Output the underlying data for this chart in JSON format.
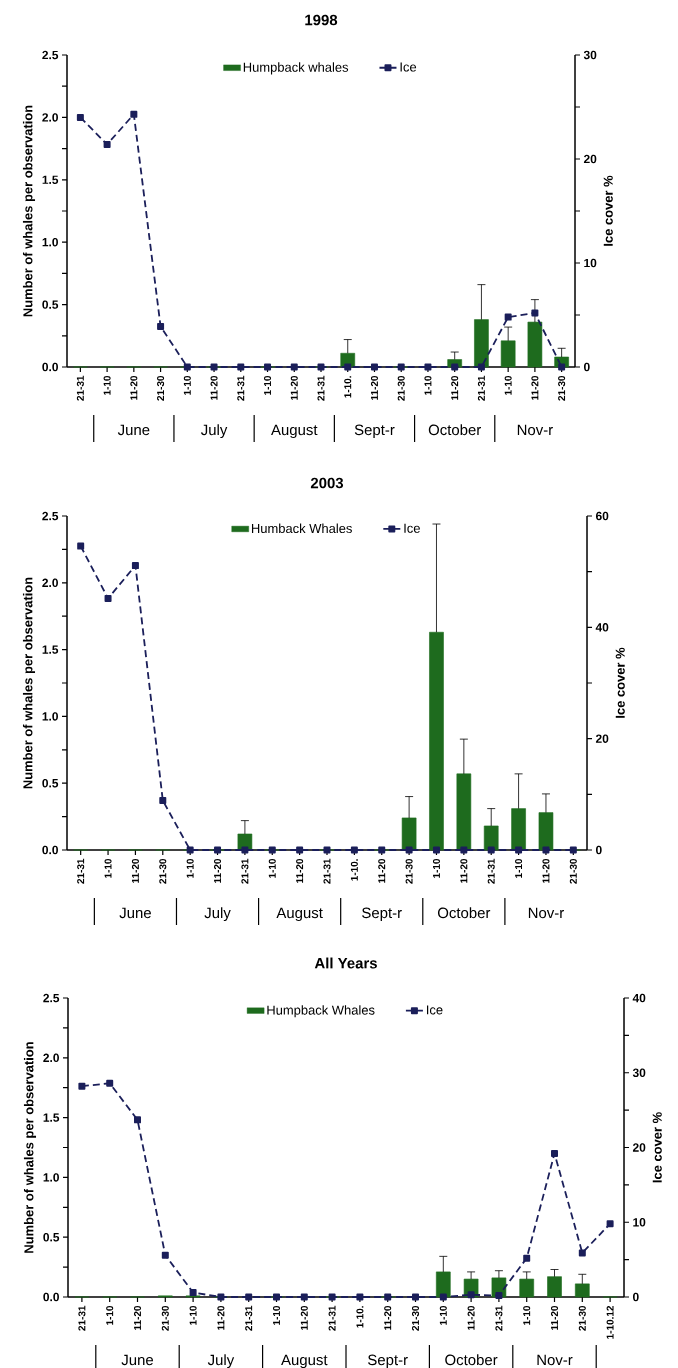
{
  "chart_data": [
    {
      "type": "bar",
      "title": "1998",
      "ylabel": "Number of whales per observation",
      "y2label": "Ice cover %",
      "categories": [
        "21-31",
        "1-10",
        "11-20",
        "21-30",
        "1-10",
        "11-20",
        "21-31",
        "1-10",
        "11-20",
        "21-31",
        "1-10.",
        "11-20",
        "21-30",
        "1-10",
        "11-20",
        "21-31",
        "1-10",
        "11-20",
        "21-30"
      ],
      "series": [
        {
          "name": "Humpback whales",
          "color": "#1e6b1e",
          "values": [
            0,
            0,
            0,
            0,
            0,
            0,
            0,
            0,
            0,
            0,
            0.11,
            0,
            0,
            0,
            0.06,
            0.38,
            0.21,
            0.36,
            0.08
          ],
          "errors": [
            null,
            null,
            null,
            null,
            null,
            null,
            null,
            null,
            null,
            null,
            [
              0.11,
              0.22
            ],
            null,
            null,
            null,
            [
              0.06,
              0.12
            ],
            [
              0.38,
              0.66
            ],
            [
              0.21,
              0.32
            ],
            [
              0.36,
              0.54
            ],
            [
              0.08,
              0.15
            ]
          ]
        },
        {
          "name": "Ice",
          "type": "line",
          "axis": "y2",
          "color": "#1b1f5a",
          "values": [
            24,
            21.4,
            24.3,
            3.9,
            0,
            0,
            0,
            0,
            0,
            0,
            0,
            0,
            0,
            0,
            0,
            0,
            4.8,
            5.2,
            0
          ]
        }
      ],
      "ylim": [
        0,
        2.5
      ],
      "yticks": [
        {
          "value": 0,
          "label": "0.0"
        },
        {
          "value": 0.25,
          "label": null
        },
        {
          "value": 0.5,
          "label": "0.5"
        },
        {
          "value": 0.75,
          "label": null
        },
        {
          "value": 1,
          "label": "1.0"
        },
        {
          "value": 1.25,
          "label": null
        },
        {
          "value": 1.5,
          "label": "1.5"
        },
        {
          "value": 1.75,
          "label": null
        },
        {
          "value": 2,
          "label": "2.0"
        },
        {
          "value": 2.25,
          "label": null
        },
        {
          "value": 2.5,
          "label": "2.5"
        }
      ],
      "y2lim": [
        0,
        30
      ],
      "y2ticks": [
        0,
        {
          "value": 5,
          "label": null
        },
        10,
        {
          "value": 15,
          "label": null
        },
        20,
        {
          "value": 25,
          "label": null
        },
        30
      ],
      "marker": "square",
      "line_style": "dashed",
      "legend": "top",
      "grid": false,
      "annotations": [
        "June",
        "July",
        "August",
        "Sept-r",
        "October",
        "Nov-r"
      ]
    },
    {
      "type": "bar",
      "title": "2003",
      "ylabel": "Number of whales per observation",
      "y2label": "Ice cover %",
      "categories": [
        "21-31",
        "1-10",
        "11-20",
        "21-30",
        "1-10",
        "11-20",
        "21-31",
        "1-10",
        "11-20",
        "21-31",
        "1-10.",
        "11-20",
        "21-30",
        "1-10",
        "11-20",
        "21-31",
        "1-10",
        "11-20",
        "21-30"
      ],
      "series": [
        {
          "name": "Humback Whales",
          "color": "#1e6b1e",
          "values": [
            0,
            0,
            0,
            0,
            0,
            0,
            0.12,
            0,
            0,
            0,
            0,
            0,
            0.24,
            1.63,
            0.57,
            0.18,
            0.31,
            0.28,
            0
          ],
          "errors": [
            null,
            null,
            null,
            null,
            null,
            null,
            [
              0.12,
              0.22
            ],
            null,
            null,
            null,
            null,
            null,
            [
              0.24,
              0.4
            ],
            [
              1.63,
              2.44
            ],
            [
              0.57,
              0.83
            ],
            [
              0.18,
              0.31
            ],
            [
              0.31,
              0.57
            ],
            [
              0.28,
              0.42
            ],
            null
          ]
        },
        {
          "name": "Ice",
          "type": "line",
          "axis": "y2",
          "color": "#1b1f5a",
          "values": [
            54.6,
            45.2,
            51.1,
            8.9,
            0,
            0,
            0,
            0,
            0,
            0,
            0,
            0,
            0,
            0,
            0,
            0,
            0,
            0,
            0
          ]
        }
      ],
      "ylim": [
        0,
        2.5
      ],
      "yticks": [
        {
          "value": 0,
          "label": "0.0"
        },
        {
          "value": 0.25,
          "label": null
        },
        {
          "value": 0.5,
          "label": "0.5"
        },
        {
          "value": 0.75,
          "label": null
        },
        {
          "value": 1,
          "label": "1.0"
        },
        {
          "value": 1.25,
          "label": null
        },
        {
          "value": 1.5,
          "label": "1.5"
        },
        {
          "value": 1.75,
          "label": null
        },
        {
          "value": 2,
          "label": "2.0"
        },
        {
          "value": 2.25,
          "label": null
        },
        {
          "value": 2.5,
          "label": "2.5"
        }
      ],
      "y2lim": [
        0,
        60
      ],
      "y2ticks": [
        0,
        {
          "value": 10,
          "label": null
        },
        20,
        {
          "value": 30,
          "label": null
        },
        40,
        {
          "value": 50,
          "label": null
        },
        60
      ],
      "marker": "square",
      "line_style": "dashed",
      "legend": "top",
      "grid": false,
      "annotations": [
        "June",
        "July",
        "August",
        "Sept-r",
        "October",
        "Nov-r"
      ]
    },
    {
      "type": "bar",
      "title": "All Years",
      "ylabel": "Number of whales per observation",
      "y2label": "Ice cover %",
      "categories": [
        "21-31",
        "1-10",
        "11-20",
        "21-30",
        "1-10",
        "11-20",
        "21-31",
        "1-10",
        "11-20",
        "21-31",
        "1-10.",
        "11-20",
        "21-30",
        "1-10",
        "11-20",
        "21-31",
        "1-10",
        "11-20",
        "21-30",
        "1-10.12"
      ],
      "series": [
        {
          "name": "Humpback Whales",
          "color": "#1e6b1e",
          "values": [
            0,
            0,
            0,
            0.01,
            0.01,
            0,
            null,
            0,
            0,
            0,
            0,
            0,
            null,
            0.21,
            0.15,
            0.16,
            0.15,
            0.17,
            0.11,
            0
          ],
          "errors": [
            null,
            null,
            null,
            null,
            null,
            null,
            null,
            null,
            null,
            null,
            null,
            null,
            null,
            [
              0.21,
              0.34
            ],
            [
              0.15,
              0.21
            ],
            [
              0.16,
              0.22
            ],
            [
              0.15,
              0.21
            ],
            [
              0.17,
              0.23
            ],
            [
              0.11,
              0.19
            ],
            null
          ]
        },
        {
          "name": "Ice",
          "type": "line",
          "axis": "y2",
          "color": "#1b1f5a",
          "values": [
            28.2,
            28.6,
            23.7,
            5.6,
            0.6,
            0,
            0,
            0,
            0,
            0,
            0,
            0,
            0,
            0,
            0.3,
            0.2,
            5.2,
            19.2,
            5.9,
            9.8
          ]
        }
      ],
      "ylim": [
        0,
        2.5
      ],
      "yticks": [
        {
          "value": 0,
          "label": "0.0"
        },
        {
          "value": 0.25,
          "label": null
        },
        {
          "value": 0.5,
          "label": "0.5"
        },
        {
          "value": 0.75,
          "label": null
        },
        {
          "value": 1,
          "label": "1.0"
        },
        {
          "value": 1.25,
          "label": null
        },
        {
          "value": 1.5,
          "label": "1.5"
        },
        {
          "value": 1.75,
          "label": null
        },
        {
          "value": 2,
          "label": "2.0"
        },
        {
          "value": 2.25,
          "label": null
        },
        {
          "value": 2.5,
          "label": "2.5"
        }
      ],
      "y2lim": [
        0,
        40
      ],
      "y2ticks": [
        0,
        {
          "value": 5,
          "label": null
        },
        10,
        {
          "value": 15,
          "label": null
        },
        20,
        {
          "value": 25,
          "label": null
        },
        30,
        {
          "value": 35,
          "label": null
        },
        40
      ],
      "marker": "square",
      "line_style": "dashed",
      "legend": "top",
      "grid": false,
      "annotations": [
        "June",
        "July",
        "August",
        "Sept-r",
        "October",
        "Nov-r"
      ]
    }
  ]
}
